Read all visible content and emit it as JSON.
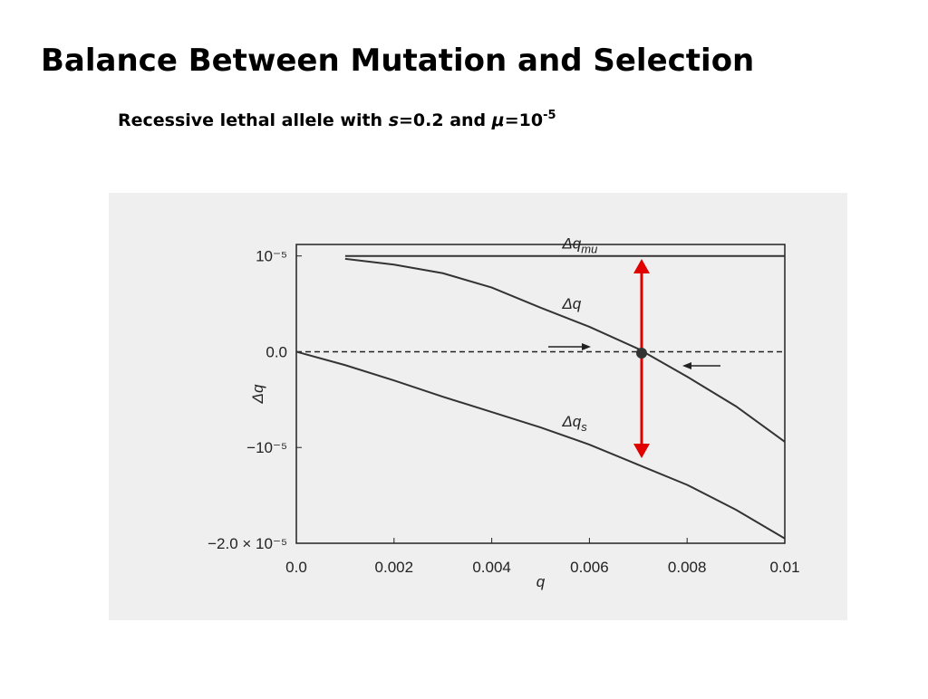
{
  "title": "Balance Between Mutation and Selection",
  "subtitle": [
    "Recessive lethal allele with ",
    "s",
    "=0.2 and ",
    "μ",
    "=10",
    "-5"
  ],
  "chart_data": {
    "type": "line",
    "x": [
      0,
      0.001,
      0.002,
      0.003,
      0.004,
      0.005,
      0.006,
      0.007,
      0.008,
      0.009,
      0.01
    ],
    "series": [
      {
        "name": "Δqmu",
        "color": "#333333",
        "values": [
          null,
          1e-05,
          1e-05,
          1e-05,
          1e-05,
          1e-05,
          1e-05,
          1e-05,
          1e-05,
          1e-05,
          1e-05
        ]
      },
      {
        "name": "Δq",
        "color": "#333333",
        "values": [
          null,
          9.7e-06,
          9.1e-06,
          8.2e-06,
          6.7e-06,
          4.6e-06,
          2.6e-06,
          3e-07,
          -2.6e-06,
          -5.7e-06,
          -9.4e-06
        ]
      },
      {
        "name": "Δqs",
        "color": "#333333",
        "values": [
          0,
          -1.4e-06,
          -3e-06,
          -4.7e-06,
          -6.3e-06,
          -7.9e-06,
          -9.7e-06,
          -1.18e-05,
          -1.39e-05,
          -1.65e-05,
          -1.95e-05
        ]
      }
    ],
    "x_label": "q",
    "y_label": "Δq",
    "xlim": [
      0,
      0.01
    ],
    "xticks": [
      {
        "value": 0,
        "label": "0.0"
      },
      0.002,
      0.004,
      0.006,
      0.008,
      0.01
    ],
    "ylim": [
      -2e-05,
      1.12e-05
    ],
    "yticks": [
      {
        "value": -2e-05,
        "label": "−2.0 × 10⁻⁵"
      },
      {
        "value": -1e-05,
        "label": "−10⁻⁵"
      },
      {
        "value": 0,
        "label": "0.0"
      },
      {
        "value": 1e-05,
        "label": "10⁻⁵"
      }
    ],
    "zero_line": true
  }
}
